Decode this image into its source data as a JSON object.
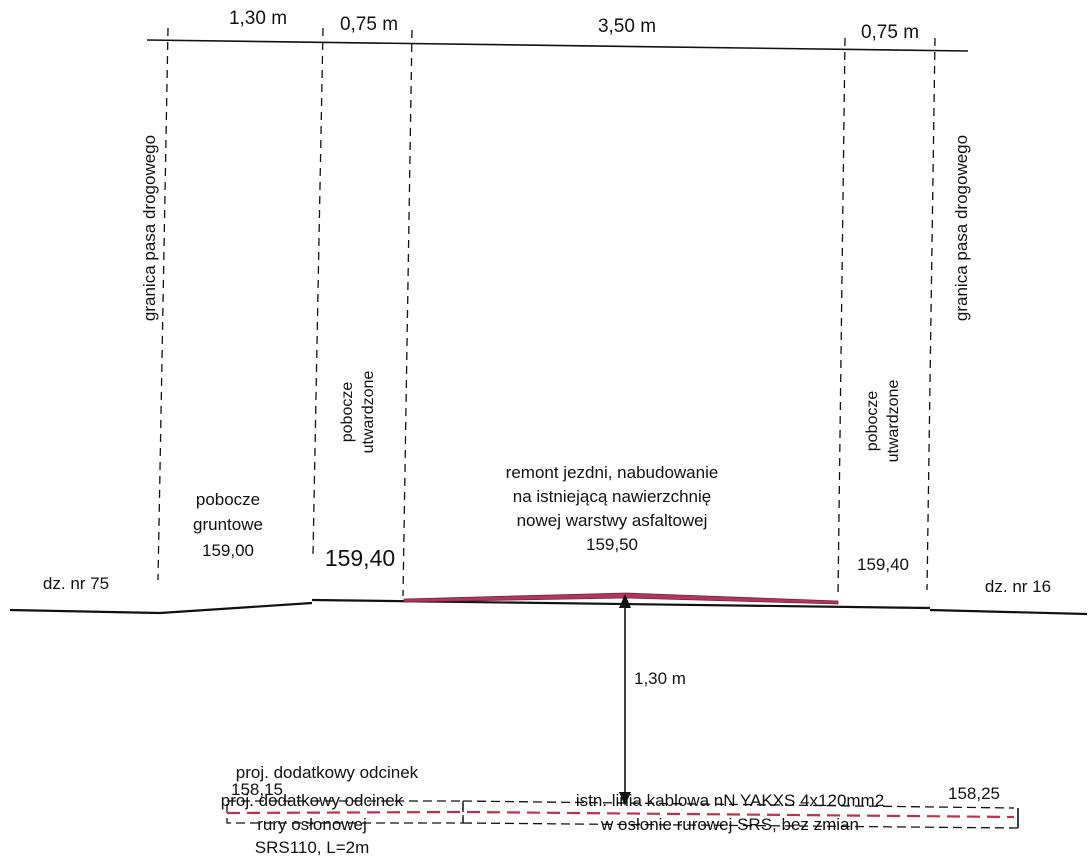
{
  "dimensions": {
    "w1": "1,30 m",
    "w2": "0,75 m",
    "w3": "3,50 m",
    "w4": "0,75 m"
  },
  "labels": {
    "boundary_left": "granica pasa drogowego",
    "boundary_right": "granica pasa drogowego",
    "shoulder_paved_left_1": "pobocze",
    "shoulder_paved_left_2": "utwardzone",
    "shoulder_paved_right_1": "pobocze",
    "shoulder_paved_right_2": "utwardzone",
    "shoulder_earth_1": "pobocze",
    "shoulder_earth_2": "gruntowe",
    "shoulder_earth_elev": "159,00",
    "shoulder_paved_left_elev": "159,40",
    "shoulder_paved_right_elev": "159,40",
    "road_1": "remont jezdni, nabudowanie",
    "road_2": "na istniejącą nawierzchnię",
    "road_3": "nowej warstwy asfaltowej",
    "road_elev": "159,50",
    "parcel_left": "dz. nr 75",
    "parcel_right": "dz. nr 16",
    "depth": "1,30 m",
    "pipe_elev_left": "158,15",
    "pipe_elev_right": "158,25",
    "new_pipe_1": "proj. dodatkowy odcinek",
    "new_pipe_2": "rury osłonowej",
    "new_pipe_3": "SRS110, L=2m",
    "cable_1": "istn. linia kablowa nN YAKXS 4x120mm2",
    "cable_2": "w osłonie rurowej SRS, bez zmian"
  },
  "colors": {
    "line": "#111111",
    "asphalt": "#b0365e",
    "cable": "#c0304a"
  }
}
